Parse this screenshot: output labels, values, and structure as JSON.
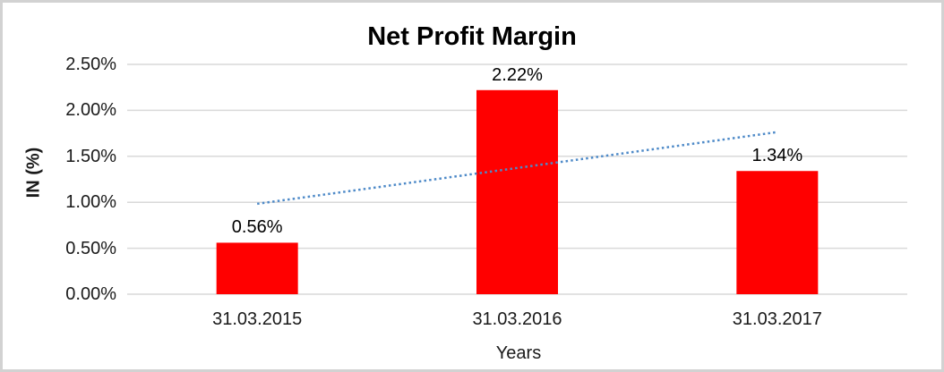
{
  "chart_data": {
    "type": "bar",
    "title": "Net Profit Margin",
    "xlabel": "Years",
    "ylabel": "IN (%)",
    "categories": [
      "31.03.2015",
      "31.03.2016",
      "31.03.2017"
    ],
    "values": [
      0.56,
      2.22,
      1.34
    ],
    "data_labels": [
      "0.56%",
      "2.22%",
      "1.34%"
    ],
    "ylim": [
      0,
      2.5
    ],
    "yticks": [
      0,
      0.5,
      1.0,
      1.5,
      2.0,
      2.5
    ],
    "ytick_labels": [
      "0.00%",
      "0.50%",
      "1.00%",
      "1.50%",
      "2.00%",
      "2.50%"
    ],
    "grid": true,
    "legend": "none",
    "bar_color": "#ff0000",
    "gridline_color": "#d9d9d9",
    "frame_border_color": "#d2d2d2",
    "trendline": {
      "type": "linear",
      "style": "dotted",
      "color": "#4e8ac8"
    }
  }
}
